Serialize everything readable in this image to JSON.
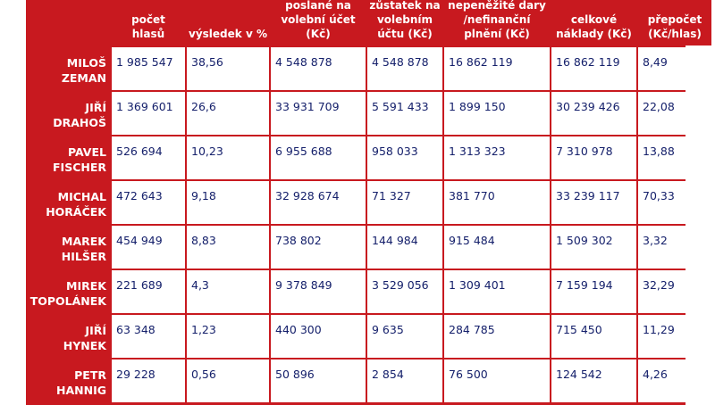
{
  "headers": [
    "počet hlasů",
    "výsledek v %",
    "peněžité dary poslané na volební účet (Kč)",
    "zůstatek na volebním účtu (Kč)",
    "nepeněžité dary /nefinanční plnění (Kč)",
    "celkové náklady (Kč)",
    "přepočet (Kč/hlas)"
  ],
  "rows": [
    {
      "first": "MILOŠ",
      "last": "ZEMAN",
      "values": [
        "1 985 547",
        "38,56",
        "4 548 878",
        "4 548 878",
        "16 862 119",
        "16 862 119",
        "8,49"
      ]
    },
    {
      "first": "JIŘÍ",
      "last": "DRAHOŠ",
      "values": [
        "1 369 601",
        "26,6",
        "33 931 709",
        "5 591 433",
        "1 899 150",
        "30 239 426",
        "22,08"
      ]
    },
    {
      "first": "PAVEL",
      "last": "FISCHER",
      "values": [
        "526 694",
        "10,23",
        "6 955 688",
        "958 033",
        "1 313 323",
        "7 310 978",
        "13,88"
      ]
    },
    {
      "first": "MICHAL",
      "last": "HORÁČEK",
      "values": [
        "472 643",
        "9,18",
        "32 928 674",
        "71 327",
        "381 770",
        "33 239 117",
        "70,33"
      ]
    },
    {
      "first": "MAREK",
      "last": "HILŠER",
      "values": [
        "454 949",
        "8,83",
        "738 802",
        "144 984",
        "915 484",
        "1 509 302",
        "3,32"
      ]
    },
    {
      "first": "MIREK",
      "last": "TOPOLÁNEK",
      "values": [
        "221 689",
        "4,3",
        "9 378 849",
        "3 529 056",
        "1 309 401",
        "7 159 194",
        "32,29"
      ]
    },
    {
      "first": "JIŘÍ",
      "last": "HYNEK",
      "values": [
        "63 348",
        "1,23",
        "440 300",
        "9 635",
        "284 785",
        "715 450",
        "11,29"
      ]
    },
    {
      "first": "PETR",
      "last": "HANNIG",
      "values": [
        "29 228",
        "0,56",
        "50 896",
        "2 854",
        "76 500",
        "124 542",
        "4,26"
      ]
    }
  ]
}
